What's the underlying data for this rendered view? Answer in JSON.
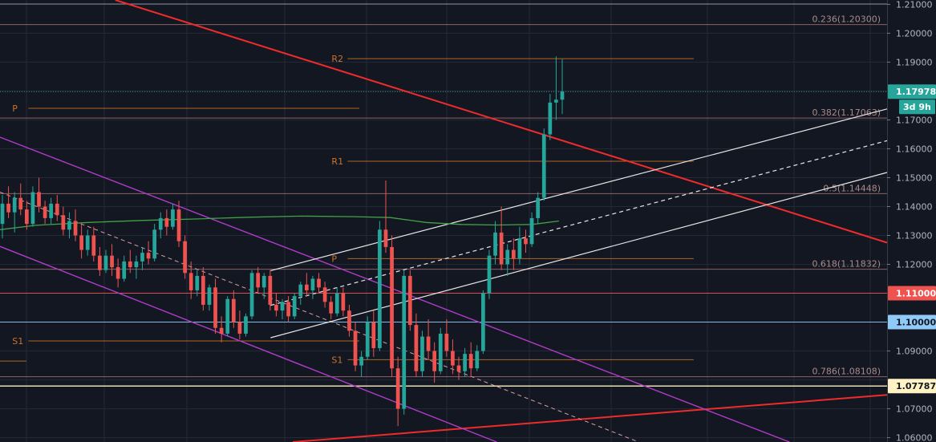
{
  "chart_data": {
    "type": "candlestick",
    "title": "",
    "xlabel": "",
    "ylabel": "",
    "ylim": [
      1.0585,
      1.2115
    ],
    "grid": true,
    "y_ticks": [
      {
        "value": 1.21,
        "label": "1.21000"
      },
      {
        "value": 1.2,
        "label": "1.20000"
      },
      {
        "value": 1.19,
        "label": "1.19000"
      },
      {
        "value": 1.17,
        "label": "1.17000"
      },
      {
        "value": 1.16,
        "label": "1.16000"
      },
      {
        "value": 1.15,
        "label": "1.15000"
      },
      {
        "value": 1.14,
        "label": "1.14000"
      },
      {
        "value": 1.13,
        "label": "1.13000"
      },
      {
        "value": 1.12,
        "label": "1.12000"
      },
      {
        "value": 1.09,
        "label": "1.09000"
      },
      {
        "value": 1.07,
        "label": "1.07000"
      },
      {
        "value": 1.06,
        "label": "1.06000"
      }
    ],
    "price_tags": [
      {
        "value": 1.17978,
        "label": "1.17978",
        "bg": "#26a69a",
        "fg": "#ffffff"
      },
      {
        "value": 1.11,
        "label": "1.11000",
        "bg": "#ef5350",
        "fg": "#ffffff"
      },
      {
        "value": 1.1,
        "label": "1.10000",
        "bg": "#90caf9",
        "fg": "#131722"
      },
      {
        "value": 1.07787,
        "label": "1.07787",
        "bg": "#fff3c4",
        "fg": "#131722"
      }
    ],
    "countdown": "3d 9h",
    "fib_levels": [
      {
        "value": 1.203,
        "label": "0.236(1.20300)"
      },
      {
        "value": 1.17063,
        "label": "0.382(1.17063)"
      },
      {
        "value": 1.14448,
        "label": "0.5(1.14448)"
      },
      {
        "value": 1.11832,
        "label": "0.618(1.11832)"
      },
      {
        "value": 1.08108,
        "label": "0.786(1.08108)"
      }
    ],
    "pivots": [
      {
        "label": "P",
        "value": 1.174,
        "x_start": 0.012,
        "x_end": 0.405
      },
      {
        "label": "S1",
        "value": 1.0935,
        "x_start": 0.012,
        "x_end": 0.405
      },
      {
        "label": "R2",
        "value": 1.1912,
        "x_start": 0.372,
        "x_end": 0.782
      },
      {
        "label": "R1",
        "value": 1.1557,
        "x_start": 0.372,
        "x_end": 0.782
      },
      {
        "label": "P",
        "value": 1.122,
        "x_start": 0.372,
        "x_end": 0.782
      },
      {
        "label": "S1",
        "value": 1.087,
        "x_start": 0.372,
        "x_end": 0.782
      }
    ],
    "candles": [
      [
        1.134,
        1.144,
        1.129,
        1.141
      ],
      [
        1.141,
        1.147,
        1.136,
        1.138
      ],
      [
        1.138,
        1.145,
        1.131,
        1.143
      ],
      [
        1.143,
        1.148,
        1.137,
        1.139
      ],
      [
        1.139,
        1.142,
        1.132,
        1.134
      ],
      [
        1.134,
        1.147,
        1.133,
        1.145
      ],
      [
        1.145,
        1.15,
        1.138,
        1.14
      ],
      [
        1.14,
        1.142,
        1.134,
        1.136
      ],
      [
        1.136,
        1.143,
        1.134,
        1.141
      ],
      [
        1.141,
        1.144,
        1.135,
        1.137
      ],
      [
        1.137,
        1.14,
        1.13,
        1.132
      ],
      [
        1.132,
        1.138,
        1.129,
        1.135
      ],
      [
        1.135,
        1.139,
        1.128,
        1.13
      ],
      [
        1.13,
        1.134,
        1.122,
        1.125
      ],
      [
        1.125,
        1.132,
        1.123,
        1.13
      ],
      [
        1.13,
        1.133,
        1.121,
        1.123
      ],
      [
        1.123,
        1.126,
        1.116,
        1.118
      ],
      [
        1.118,
        1.125,
        1.117,
        1.123
      ],
      [
        1.123,
        1.127,
        1.116,
        1.119
      ],
      [
        1.119,
        1.122,
        1.112,
        1.115
      ],
      [
        1.115,
        1.123,
        1.114,
        1.121
      ],
      [
        1.121,
        1.125,
        1.117,
        1.119
      ],
      [
        1.119,
        1.123,
        1.115,
        1.121
      ],
      [
        1.121,
        1.126,
        1.118,
        1.124
      ],
      [
        1.124,
        1.128,
        1.12,
        1.122
      ],
      [
        1.122,
        1.134,
        1.121,
        1.132
      ],
      [
        1.132,
        1.138,
        1.129,
        1.136
      ],
      [
        1.136,
        1.139,
        1.13,
        1.133
      ],
      [
        1.133,
        1.141,
        1.132,
        1.139
      ],
      [
        1.139,
        1.142,
        1.126,
        1.128
      ],
      [
        1.128,
        1.13,
        1.115,
        1.117
      ],
      [
        1.117,
        1.121,
        1.108,
        1.111
      ],
      [
        1.111,
        1.118,
        1.109,
        1.116
      ],
      [
        1.116,
        1.119,
        1.104,
        1.106
      ],
      [
        1.106,
        1.113,
        1.104,
        1.112
      ],
      [
        1.112,
        1.115,
        1.096,
        1.098
      ],
      [
        1.098,
        1.102,
        1.093,
        1.096
      ],
      [
        1.096,
        1.109,
        1.095,
        1.108
      ],
      [
        1.108,
        1.111,
        1.098,
        1.1
      ],
      [
        1.1,
        1.104,
        1.094,
        1.096
      ],
      [
        1.096,
        1.103,
        1.095,
        1.102
      ],
      [
        1.102,
        1.118,
        1.101,
        1.117
      ],
      [
        1.117,
        1.119,
        1.11,
        1.112
      ],
      [
        1.112,
        1.117,
        1.108,
        1.116
      ],
      [
        1.116,
        1.118,
        1.104,
        1.106
      ],
      [
        1.106,
        1.11,
        1.102,
        1.104
      ],
      [
        1.104,
        1.108,
        1.101,
        1.107
      ],
      [
        1.107,
        1.109,
        1.1,
        1.102
      ],
      [
        1.102,
        1.11,
        1.101,
        1.109
      ],
      [
        1.109,
        1.114,
        1.106,
        1.113
      ],
      [
        1.113,
        1.117,
        1.109,
        1.111
      ],
      [
        1.111,
        1.116,
        1.108,
        1.115
      ],
      [
        1.115,
        1.117,
        1.11,
        1.112
      ],
      [
        1.112,
        1.114,
        1.105,
        1.107
      ],
      [
        1.107,
        1.109,
        1.101,
        1.103
      ],
      [
        1.103,
        1.112,
        1.102,
        1.11
      ],
      [
        1.11,
        1.112,
        1.102,
        1.104
      ],
      [
        1.104,
        1.106,
        1.095,
        1.097
      ],
      [
        1.097,
        1.1,
        1.083,
        1.085
      ],
      [
        1.085,
        1.09,
        1.081,
        1.088
      ],
      [
        1.088,
        1.102,
        1.087,
        1.1
      ],
      [
        1.1,
        1.104,
        1.088,
        1.091
      ],
      [
        1.091,
        1.135,
        1.09,
        1.132
      ],
      [
        1.132,
        1.149,
        1.124,
        1.126
      ],
      [
        1.126,
        1.13,
        1.081,
        1.084
      ],
      [
        1.084,
        1.088,
        1.064,
        1.07
      ],
      [
        1.07,
        1.118,
        1.068,
        1.116
      ],
      [
        1.116,
        1.118,
        1.097,
        1.099
      ],
      [
        1.099,
        1.103,
        1.081,
        1.083
      ],
      [
        1.083,
        1.097,
        1.081,
        1.095
      ],
      [
        1.095,
        1.101,
        1.087,
        1.09
      ],
      [
        1.09,
        1.093,
        1.079,
        1.083
      ],
      [
        1.083,
        1.098,
        1.082,
        1.096
      ],
      [
        1.096,
        1.101,
        1.088,
        1.09
      ],
      [
        1.09,
        1.094,
        1.082,
        1.085
      ],
      [
        1.085,
        1.088,
        1.08,
        1.083
      ],
      [
        1.083,
        1.091,
        1.081,
        1.089
      ],
      [
        1.089,
        1.093,
        1.081,
        1.084
      ],
      [
        1.084,
        1.092,
        1.083,
        1.09
      ],
      [
        1.09,
        1.111,
        1.089,
        1.11
      ],
      [
        1.11,
        1.125,
        1.108,
        1.123
      ],
      [
        1.123,
        1.135,
        1.12,
        1.131
      ],
      [
        1.131,
        1.14,
        1.118,
        1.12
      ],
      [
        1.12,
        1.127,
        1.116,
        1.125
      ],
      [
        1.125,
        1.129,
        1.118,
        1.122
      ],
      [
        1.122,
        1.133,
        1.12,
        1.129
      ],
      [
        1.129,
        1.132,
        1.124,
        1.127
      ],
      [
        1.127,
        1.138,
        1.126,
        1.136
      ],
      [
        1.136,
        1.145,
        1.134,
        1.143
      ],
      [
        1.143,
        1.167,
        1.142,
        1.165
      ],
      [
        1.165,
        1.179,
        1.163,
        1.176
      ],
      [
        1.176,
        1.192,
        1.17,
        1.177
      ],
      [
        1.177,
        1.191,
        1.172,
        1.1798
      ]
    ],
    "series": [
      {
        "name": "",
        "color": "#43a047",
        "values": [
          [
            0.0,
            1.132
          ],
          [
            0.04,
            1.1335
          ],
          [
            0.1,
            1.1345
          ],
          [
            0.16,
            1.1352
          ],
          [
            0.22,
            1.1357
          ],
          [
            0.28,
            1.1363
          ],
          [
            0.34,
            1.1367
          ],
          [
            0.4,
            1.1365
          ],
          [
            0.44,
            1.1362
          ],
          [
            0.48,
            1.1345
          ],
          [
            0.52,
            1.1338
          ],
          [
            0.56,
            1.1336
          ],
          [
            0.6,
            1.1338
          ],
          [
            0.63,
            1.135
          ]
        ]
      }
    ],
    "trendlines": [
      {
        "color": "#ef2b2b",
        "width": 2,
        "dash": "",
        "p1": [
          0.13,
          1.2115
        ],
        "p2": [
          1.0,
          1.1275
        ]
      },
      {
        "color": "#ef2b2b",
        "width": 2,
        "dash": "",
        "p1": [
          0.33,
          1.0585
        ],
        "p2": [
          1.0,
          1.0748
        ]
      },
      {
        "color": "#b03bc9",
        "width": 1.4,
        "dash": "",
        "p1": [
          0.0,
          1.164
        ],
        "p2": [
          0.89,
          1.0585
        ]
      },
      {
        "color": "#b03bc9",
        "width": 1.4,
        "dash": "",
        "p1": [
          0.0,
          1.1262
        ],
        "p2": [
          0.56,
          1.0585
        ]
      },
      {
        "color": "#d8a0a0",
        "width": 1,
        "dash": "5,4",
        "p1": [
          0.0,
          1.145
        ],
        "p2": [
          0.72,
          1.0585
        ]
      },
      {
        "color": "#e6e6e6",
        "width": 1.2,
        "dash": "",
        "p1": [
          0.305,
          1.1178
        ],
        "p2": [
          1.0,
          1.1738
        ]
      },
      {
        "color": "#e6e6e6",
        "width": 1.2,
        "dash": "5,4",
        "p1": [
          0.305,
          1.1058
        ],
        "p2": [
          1.0,
          1.1628
        ]
      },
      {
        "color": "#e6e6e6",
        "width": 1.2,
        "dash": "",
        "p1": [
          0.305,
          1.0946
        ],
        "p2": [
          1.0,
          1.1518
        ]
      }
    ]
  }
}
